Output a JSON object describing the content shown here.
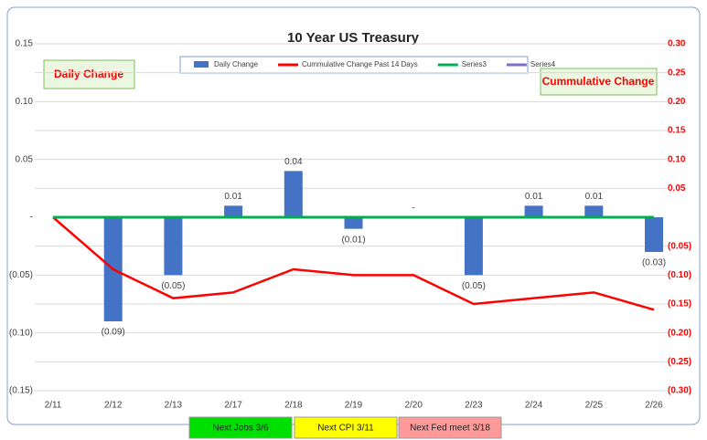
{
  "chart_data": {
    "type": "combo",
    "title": "10 Year US Treasury",
    "categories": [
      "2/11",
      "2/12",
      "2/13",
      "2/17",
      "2/18",
      "2/19",
      "2/20",
      "2/23",
      "2/24",
      "2/25",
      "2/26"
    ],
    "series": [
      {
        "name": "Daily Change",
        "type": "bar",
        "color": "#4472c4",
        "values": [
          null,
          -0.09,
          -0.05,
          0.01,
          0.04,
          -0.01,
          0,
          -0.05,
          0.01,
          0.01,
          -0.03
        ],
        "value_labels": [
          null,
          "(0.09)",
          "(0.05)",
          "0.01",
          "0.04",
          "(0.01)",
          "-",
          "(0.05)",
          "0.01",
          "0.01",
          "(0.03)"
        ]
      },
      {
        "name": "Cummulative Change Past 14 Days",
        "type": "line",
        "axis": "y2",
        "color": "#ff0000",
        "values": [
          0,
          -0.09,
          -0.14,
          -0.13,
          -0.09,
          -0.1,
          -0.1,
          -0.15,
          -0.14,
          -0.13,
          -0.16
        ]
      },
      {
        "name": "Series3",
        "type": "line",
        "color": "#00b050",
        "values": [
          0,
          0,
          0,
          0,
          0,
          0,
          0,
          0,
          0,
          0,
          0
        ]
      },
      {
        "name": "Series4",
        "type": "line",
        "color": "#7f6fc0",
        "values": [
          null,
          null,
          null,
          null,
          null,
          null,
          null,
          null,
          null,
          null,
          null
        ]
      }
    ],
    "ylim": [
      -0.15,
      0.15
    ],
    "yticks": [
      0.15,
      {
        "value": 0.1,
        "label": "0.10"
      },
      0.05,
      {
        "value": 0,
        "label": "-"
      },
      {
        "value": -0.05,
        "label": "(0.05)"
      },
      {
        "value": -0.1,
        "label": "(0.10)"
      },
      {
        "value": -0.15,
        "label": "(0.15)"
      }
    ],
    "y2lim": [
      -0.3,
      0.3
    ],
    "y2ticks": [
      {
        "value": 0.3,
        "label": "0.30"
      },
      0.25,
      {
        "value": 0.2,
        "label": "0.20"
      },
      0.15,
      {
        "value": 0.1,
        "label": "0.10"
      },
      0.05,
      {
        "value": -0.05,
        "label": "(0.05)"
      },
      {
        "value": -0.1,
        "label": "(0.10)"
      },
      {
        "value": -0.15,
        "label": "(0.15)"
      },
      {
        "value": -0.2,
        "label": "(0.20)"
      },
      {
        "value": -0.25,
        "label": "(0.25)"
      },
      {
        "value": -0.3,
        "label": "(0.30)"
      }
    ],
    "grid": true,
    "legend": "top",
    "annotations": [
      "Daily Change",
      "Cummulative Change"
    ]
  },
  "buttons": [
    {
      "label": "Next Jobs 3/6",
      "color": "#00e000"
    },
    {
      "label": "Next CPI 3/11",
      "color": "#ffff00"
    },
    {
      "label": "Next Fed meet 3/18",
      "color": "#ff9a9a"
    }
  ]
}
